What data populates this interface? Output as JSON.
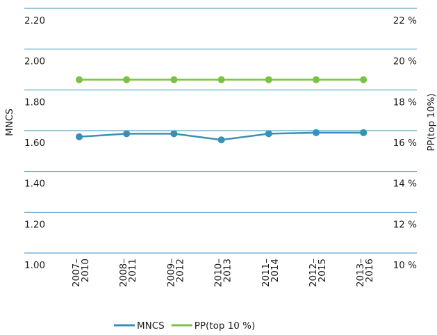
{
  "chart_data": {
    "type": "line",
    "categories": [
      [
        "2007–",
        "2010"
      ],
      [
        "2008–",
        "2011"
      ],
      [
        "2009–",
        "2012"
      ],
      [
        "2010–",
        "2013"
      ],
      [
        "2011–",
        "2014"
      ],
      [
        "2012–",
        "2015"
      ],
      [
        "2013–",
        "2016"
      ]
    ],
    "series": [
      {
        "name": "MNCS",
        "axis": "left",
        "color": "#3a8fb7",
        "values": [
          1.57,
          1.585,
          1.585,
          1.555,
          1.585,
          1.59,
          1.59
        ]
      },
      {
        "name": "PP(top 10 %)",
        "axis": "right",
        "color": "#7cc242",
        "values": [
          18.5,
          18.5,
          18.5,
          18.5,
          18.5,
          18.5,
          18.5
        ]
      }
    ],
    "y_left": {
      "label": "MNCS",
      "ylim": [
        1.0,
        2.2
      ],
      "ticks": [
        "1.00",
        "1.20",
        "1.40",
        "1.60",
        "1.80",
        "2.00",
        "2.20"
      ]
    },
    "y_right": {
      "label": "PP(top 10%)",
      "ylim": [
        10,
        22
      ],
      "ticks": [
        "10 %",
        "12 %",
        "14 %",
        "16 %",
        "18 %",
        "20 %",
        "22 %"
      ]
    },
    "grid": true,
    "grid_color": "#3a8fb7",
    "legend_position": "bottom-center"
  }
}
